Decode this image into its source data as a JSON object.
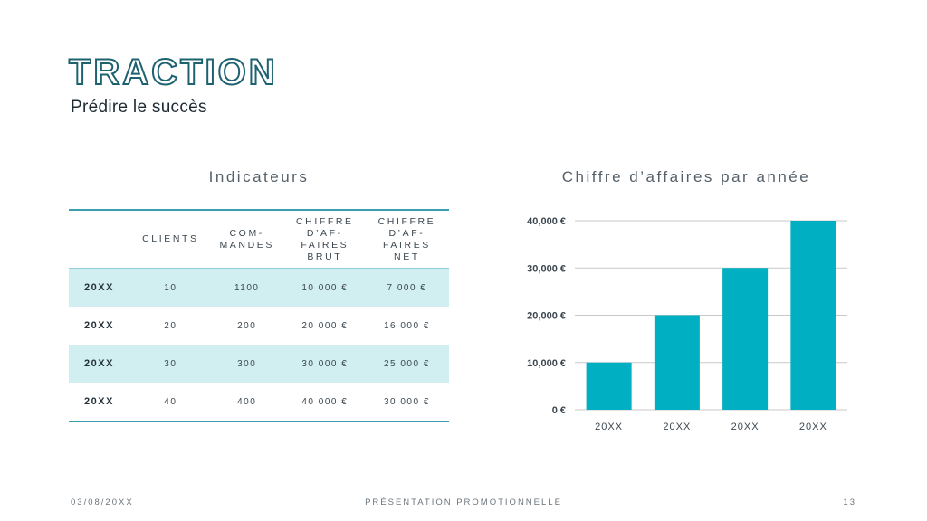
{
  "header": {
    "title": "TRACTION",
    "subtitle": "Prédire le succès"
  },
  "table_section": {
    "heading": "Indicateurs",
    "columns": [
      "",
      "CLIENTS",
      "COM-\nMANDES",
      "CHIFFRE\nD’AF-\nFAIRES\nBRUT",
      "CHIFFRE\nD’AF-\nFAIRES\nNET"
    ],
    "rows": [
      [
        "20XX",
        "10",
        "1100",
        "10 000 €",
        "7 000 €"
      ],
      [
        "20XX",
        "20",
        "200",
        "20 000 €",
        "16 000 €"
      ],
      [
        "20XX",
        "30",
        "300",
        "30 000 €",
        "25 000 €"
      ],
      [
        "20XX",
        "40",
        "400",
        "40 000 €",
        "30 000 €"
      ]
    ]
  },
  "chart_section": {
    "heading": "Chiffre d’affaires par année"
  },
  "chart_data": {
    "type": "bar",
    "categories": [
      "20XX",
      "20XX",
      "20XX",
      "20XX"
    ],
    "values": [
      10000,
      20000,
      30000,
      40000
    ],
    "yticks": [
      "0 €",
      "10,000 €",
      "20,000 €",
      "30,000 €",
      "40,000 €"
    ],
    "ylim": [
      0,
      40000
    ],
    "title": "",
    "xlabel": "",
    "ylabel": "",
    "grid": true,
    "bar_color": "#00afc1",
    "grid_color": "#c9c9c9"
  },
  "footer": {
    "date": "03/08/20XX",
    "center": "PRÉSENTATION PROMOTIONNELLE",
    "page": "13"
  }
}
